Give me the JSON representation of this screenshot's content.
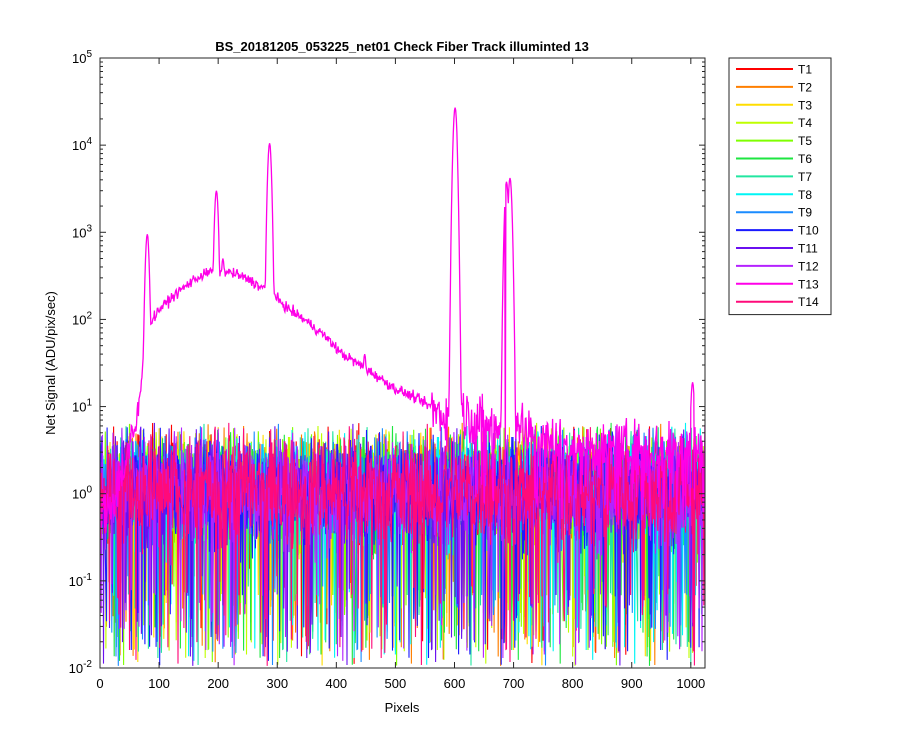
{
  "chart_data": {
    "type": "line",
    "title": "BS_20181205_053225_net01   Check Fiber     Track illuminted 13",
    "xlabel": "Pixels",
    "ylabel": "Net Signal (ADU/pix/sec)",
    "xlim": [
      0,
      1024
    ],
    "ylim": [
      0.01,
      100000
    ],
    "yscale": "log",
    "grid": false,
    "legend_position": "outside-right",
    "x_ticks": [
      "0",
      "100",
      "200",
      "300",
      "400",
      "500",
      "600",
      "700",
      "800",
      "900",
      "1000"
    ],
    "x_tick_values": [
      0,
      100,
      200,
      300,
      400,
      500,
      600,
      700,
      800,
      900,
      1000
    ],
    "y_tick_exponents": [
      "-2",
      "-1",
      "0",
      "1",
      "2",
      "3",
      "4",
      "5"
    ],
    "y_tick_base": "10",
    "series": [
      {
        "name": "T1",
        "color": "#ff0000"
      },
      {
        "name": "T2",
        "color": "#ff7f00"
      },
      {
        "name": "T3",
        "color": "#ffdd00"
      },
      {
        "name": "T4",
        "color": "#bfff00"
      },
      {
        "name": "T5",
        "color": "#7fff00"
      },
      {
        "name": "T6",
        "color": "#1ee640"
      },
      {
        "name": "T7",
        "color": "#22e6a0"
      },
      {
        "name": "T8",
        "color": "#00f5f5"
      },
      {
        "name": "T9",
        "color": "#1a8cff"
      },
      {
        "name": "T10",
        "color": "#1a1aff"
      },
      {
        "name": "T11",
        "color": "#6a10f0"
      },
      {
        "name": "T12",
        "color": "#b422ff"
      },
      {
        "name": "T13",
        "color": "#ff00e8"
      },
      {
        "name": "T14",
        "color": "#ff0a7a"
      }
    ],
    "illuminated_track": {
      "series": "T13",
      "baseline_points": [
        [
          0,
          0.5
        ],
        [
          20,
          0.8
        ],
        [
          40,
          2
        ],
        [
          55,
          4
        ],
        [
          62,
          7
        ],
        [
          70,
          18
        ],
        [
          75,
          60
        ],
        [
          85,
          90
        ],
        [
          100,
          130
        ],
        [
          130,
          200
        ],
        [
          160,
          290
        ],
        [
          185,
          350
        ],
        [
          210,
          360
        ],
        [
          230,
          330
        ],
        [
          255,
          280
        ],
        [
          270,
          240
        ],
        [
          285,
          215
        ],
        [
          300,
          170
        ],
        [
          320,
          130
        ],
        [
          350,
          95
        ],
        [
          380,
          65
        ],
        [
          410,
          40
        ],
        [
          440,
          30
        ],
        [
          470,
          22
        ],
        [
          500,
          16
        ],
        [
          530,
          13
        ],
        [
          560,
          10
        ],
        [
          580,
          8
        ],
        [
          590,
          8
        ],
        [
          620,
          8
        ],
        [
          650,
          6
        ],
        [
          670,
          6
        ],
        [
          700,
          8
        ],
        [
          720,
          5
        ],
        [
          760,
          4
        ],
        [
          800,
          3.5
        ],
        [
          850,
          3.2
        ],
        [
          900,
          3.2
        ],
        [
          1000,
          3.2
        ],
        [
          1024,
          3.2
        ]
      ],
      "peaks": [
        {
          "x": 80,
          "y": 950
        },
        {
          "x": 197,
          "y": 3000
        },
        {
          "x": 208,
          "y": 500
        },
        {
          "x": 287,
          "y": 10500
        },
        {
          "x": 448,
          "y": 40
        },
        {
          "x": 601,
          "y": 27000
        },
        {
          "x": 688,
          "y": 3800
        },
        {
          "x": 694,
          "y": 4200
        },
        {
          "x": 1003,
          "y": 19
        }
      ]
    },
    "background_tracks": {
      "series": [
        "T1",
        "T2",
        "T3",
        "T4",
        "T5",
        "T6",
        "T7",
        "T8",
        "T9",
        "T10",
        "T11",
        "T12",
        "T14"
      ],
      "typical_range": [
        0.1,
        5
      ],
      "floor": 0.01
    }
  }
}
